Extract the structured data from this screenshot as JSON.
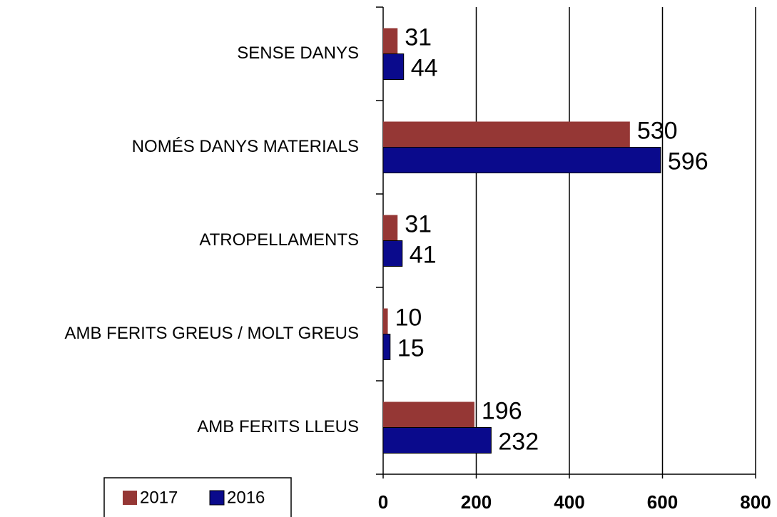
{
  "chart_data": {
    "type": "bar",
    "orientation": "horizontal",
    "categories": [
      "SENSE DANYS",
      "NOMÉS DANYS MATERIALS",
      "ATROPELLAMENTS",
      "AMB FERITS GREUS / MOLT GREUS",
      "AMB FERITS LLEUS"
    ],
    "series": [
      {
        "name": "2017",
        "color": "#953735",
        "values": [
          31,
          530,
          31,
          10,
          196
        ]
      },
      {
        "name": "2016",
        "color": "#0a0a8c",
        "values": [
          44,
          596,
          41,
          15,
          232
        ]
      }
    ],
    "xlim": [
      0,
      800
    ],
    "xticks": [
      0,
      200,
      400,
      600,
      800
    ],
    "grid": true,
    "legend": "bottom-left"
  }
}
